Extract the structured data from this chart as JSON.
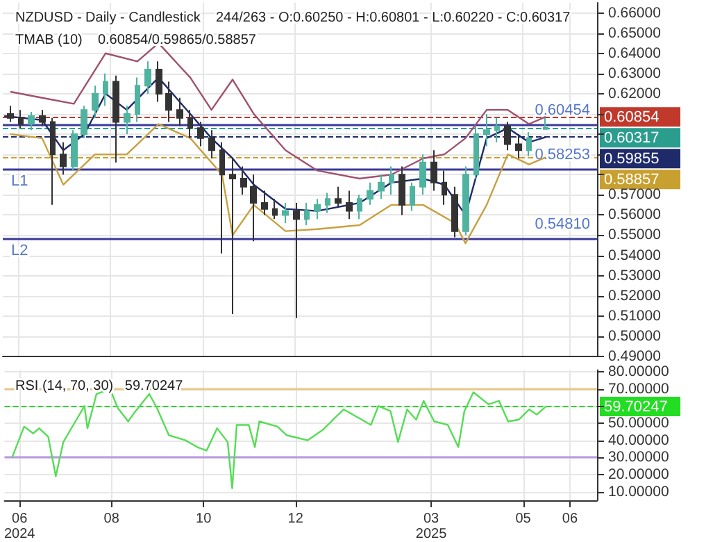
{
  "chart_data": [
    {
      "type": "candlestick",
      "title": "NZDUSD - Daily - Candlestick    244/263 - O:0.60250 - H:0.60801 - L:0.60220 - C:0.60317",
      "subtitle": "TMAB (10)    0.60854/0.59865/0.58857",
      "series": [
        {
          "colors": [
            "#333333",
            "#333333",
            "#4fb3a0",
            "#333333",
            "#333333",
            "#333333",
            "#4fb3a0",
            "#4fb3a0",
            "#4fb3a0",
            "#4fb3a0",
            "#333333",
            "#4fb3a0",
            "#4fb3a0",
            "#4fb3a0",
            "#333333",
            "#333333",
            "#333333",
            "#333333",
            "#333333",
            "#333333",
            "#333333",
            "#333333",
            "#333333",
            "#333333",
            "#333333",
            "#333333",
            "#4fb3a0",
            "#333333",
            "#4fb3a0",
            "#4fb3a0",
            "#4fb3a0",
            "#333333",
            "#333333",
            "#4fb3a0",
            "#4fb3a0",
            "#4fb3a0",
            "#4fb3a0",
            "#333333",
            "#4fb3a0",
            "#4fb3a0",
            "#333333",
            "#333333",
            "#333333",
            "#4fb3a0",
            "#4fb3a0",
            "#4fb3a0",
            "#4fb3a0",
            "#333333",
            "#333333",
            "#4fb3a0",
            "#4fb3a0"
          ],
          "x": [
            "2024-05-27",
            "2024-06-03",
            "2024-06-10",
            "2024-06-17",
            "2024-06-24",
            "2024-07-01",
            "2024-07-08",
            "2024-07-15",
            "2024-07-22",
            "2024-07-29",
            "2024-08-05",
            "2024-08-12",
            "2024-08-19",
            "2024-08-26",
            "2024-09-02",
            "2024-09-09",
            "2024-09-16",
            "2024-09-23",
            "2024-09-30",
            "2024-10-07",
            "2024-10-14",
            "2024-10-21",
            "2024-10-28",
            "2024-11-04",
            "2024-11-11",
            "2024-11-18",
            "2024-11-25",
            "2024-12-02",
            "2024-12-09",
            "2024-12-16",
            "2024-12-23",
            "2024-12-30",
            "2025-01-06",
            "2025-01-13",
            "2025-01-20",
            "2025-01-27",
            "2025-02-03",
            "2025-02-10",
            "2025-02-17",
            "2025-02-24",
            "2025-03-03",
            "2025-03-10",
            "2025-03-17",
            "2025-03-24",
            "2025-03-31",
            "2025-04-07",
            "2025-04-14",
            "2025-04-21",
            "2025-04-28",
            "2025-05-05",
            "2025-05-16"
          ],
          "ohlc": [
            [
              0.61,
              0.614,
              0.606,
              0.608
            ],
            [
              0.608,
              0.612,
              0.603,
              0.605
            ],
            [
              0.605,
              0.611,
              0.602,
              0.609
            ],
            [
              0.609,
              0.612,
              0.604,
              0.606
            ],
            [
              0.606,
              0.608,
              0.565,
              0.59
            ],
            [
              0.59,
              0.596,
              0.58,
              0.584
            ],
            [
              0.584,
              0.602,
              0.582,
              0.6
            ],
            [
              0.6,
              0.614,
              0.598,
              0.612
            ],
            [
              0.612,
              0.624,
              0.608,
              0.62
            ],
            [
              0.62,
              0.63,
              0.614,
              0.626
            ],
            [
              0.626,
              0.629,
              0.586,
              0.606
            ],
            [
              0.606,
              0.614,
              0.6,
              0.61
            ],
            [
              0.61,
              0.628,
              0.606,
              0.624
            ],
            [
              0.624,
              0.636,
              0.62,
              0.632
            ],
            [
              0.632,
              0.636,
              0.616,
              0.62
            ],
            [
              0.62,
              0.626,
              0.606,
              0.612
            ],
            [
              0.612,
              0.618,
              0.604,
              0.608
            ],
            [
              0.608,
              0.612,
              0.598,
              0.603
            ],
            [
              0.603,
              0.606,
              0.594,
              0.598
            ],
            [
              0.598,
              0.602,
              0.588,
              0.592
            ],
            [
              0.592,
              0.596,
              0.541,
              0.58
            ],
            [
              0.58,
              0.588,
              0.511,
              0.578
            ],
            [
              0.578,
              0.584,
              0.57,
              0.574
            ],
            [
              0.574,
              0.58,
              0.547,
              0.566
            ],
            [
              0.566,
              0.572,
              0.56,
              0.563
            ],
            [
              0.563,
              0.568,
              0.558,
              0.56
            ],
            [
              0.56,
              0.566,
              0.556,
              0.562
            ],
            [
              0.562,
              0.566,
              0.509,
              0.558
            ],
            [
              0.558,
              0.566,
              0.555,
              0.562
            ],
            [
              0.562,
              0.568,
              0.558,
              0.565
            ],
            [
              0.565,
              0.571,
              0.561,
              0.568
            ],
            [
              0.568,
              0.574,
              0.564,
              0.566
            ],
            [
              0.566,
              0.572,
              0.558,
              0.562
            ],
            [
              0.562,
              0.57,
              0.558,
              0.568
            ],
            [
              0.568,
              0.576,
              0.565,
              0.572
            ],
            [
              0.572,
              0.58,
              0.568,
              0.576
            ],
            [
              0.576,
              0.584,
              0.57,
              0.58
            ],
            [
              0.58,
              0.584,
              0.56,
              0.565
            ],
            [
              0.565,
              0.576,
              0.562,
              0.574
            ],
            [
              0.574,
              0.59,
              0.57,
              0.586
            ],
            [
              0.586,
              0.592,
              0.572,
              0.576
            ],
            [
              0.576,
              0.582,
              0.565,
              0.57
            ],
            [
              0.57,
              0.574,
              0.549,
              0.552
            ],
            [
              0.552,
              0.584,
              0.55,
              0.58
            ],
            [
              0.58,
              0.604,
              0.578,
              0.6
            ],
            [
              0.6,
              0.61,
              0.594,
              0.602
            ],
            [
              0.602,
              0.608,
              0.596,
              0.604
            ],
            [
              0.604,
              0.606,
              0.592,
              0.595
            ],
            [
              0.595,
              0.6,
              0.588,
              0.592
            ],
            [
              0.592,
              0.601,
              0.589,
              0.598
            ],
            [
              0.6025,
              0.60801,
              0.6022,
              0.60317
            ]
          ]
        },
        {
          "type": "line",
          "color": "#a0506e",
          "x": [
            "2024-05-27",
            "2024-06-17",
            "2024-07-08",
            "2024-07-29",
            "2024-08-19",
            "2024-09-02",
            "2024-09-23",
            "2024-10-07",
            "2024-10-21",
            "2024-11-04",
            "2024-11-25",
            "2024-12-16",
            "2025-01-13",
            "2025-02-03",
            "2025-02-24",
            "2025-03-10",
            "2025-03-24",
            "2025-04-07",
            "2025-04-21",
            "2025-05-05",
            "2025-05-16"
          ],
          "values": [
            0.621,
            0.618,
            0.615,
            0.64,
            0.636,
            0.645,
            0.628,
            0.612,
            0.627,
            0.61,
            0.592,
            0.582,
            0.578,
            0.58,
            0.588,
            0.59,
            0.598,
            0.612,
            0.612,
            0.605,
            0.60854
          ]
        },
        {
          "type": "line",
          "color": "#1f2a6b",
          "x": [
            "2024-05-23",
            "2024-06-17",
            "2024-07-01",
            "2024-07-15",
            "2024-07-29",
            "2024-08-12",
            "2024-09-02",
            "2024-09-23",
            "2024-10-07",
            "2024-10-21",
            "2024-11-04",
            "2024-11-25",
            "2024-12-16",
            "2025-01-13",
            "2025-02-03",
            "2025-02-24",
            "2025-03-10",
            "2025-03-24",
            "2025-04-07",
            "2025-04-21",
            "2025-05-05",
            "2025-05-16"
          ],
          "values": [
            0.609,
            0.607,
            0.592,
            0.6,
            0.62,
            0.612,
            0.628,
            0.61,
            0.598,
            0.588,
            0.575,
            0.563,
            0.562,
            0.566,
            0.576,
            0.578,
            0.575,
            0.56,
            0.598,
            0.603,
            0.596,
            0.59855
          ]
        },
        {
          "type": "line",
          "color": "#c8a040",
          "x": [
            "2024-05-27",
            "2024-06-17",
            "2024-07-01",
            "2024-07-22",
            "2024-08-12",
            "2024-09-02",
            "2024-09-23",
            "2024-10-14",
            "2024-10-21",
            "2024-11-04",
            "2024-11-25",
            "2024-12-16",
            "2025-01-13",
            "2025-02-03",
            "2025-02-24",
            "2025-03-17",
            "2025-03-24",
            "2025-04-07",
            "2025-04-21",
            "2025-05-05",
            "2025-05-16"
          ],
          "values": [
            0.6,
            0.598,
            0.575,
            0.59,
            0.59,
            0.605,
            0.598,
            0.58,
            0.55,
            0.565,
            0.552,
            0.553,
            0.555,
            0.565,
            0.565,
            0.556,
            0.546,
            0.565,
            0.59,
            0.585,
            0.58857
          ]
        }
      ],
      "xlim": [
        "2024-05-22",
        "2025-06-19"
      ],
      "xticks": [
        {
          "value": "2024-06-01",
          "label": null
        },
        {
          "value": "2024-08-01",
          "label": null
        },
        {
          "value": "2024-10-01",
          "label": null
        },
        {
          "value": "2024-12-01",
          "label": null
        },
        {
          "value": "2025-03-01",
          "label": null
        },
        {
          "value": "2025-05-01",
          "label": null
        },
        {
          "value": "2025-06-01",
          "label": null
        }
      ],
      "ylim": [
        0.49,
        0.665
      ],
      "yticks": [
        {
          "value": 0.49,
          "label": "0.49000"
        },
        {
          "value": 0.5,
          "label": "0.50000"
        },
        {
          "value": 0.51,
          "label": "0.51000"
        },
        {
          "value": 0.52,
          "label": "0.52000"
        },
        {
          "value": 0.53,
          "label": "0.53000"
        },
        {
          "value": 0.54,
          "label": "0.54000"
        },
        {
          "value": 0.55,
          "label": "0.55000"
        },
        {
          "value": 0.56,
          "label": "0.56000"
        },
        {
          "value": 0.57,
          "label": "0.57000"
        },
        {
          "value": 0.58,
          "label": null
        },
        {
          "value": 0.59,
          "label": null
        },
        {
          "value": 0.6,
          "label": null
        },
        {
          "value": 0.61,
          "label": null
        },
        {
          "value": 0.62,
          "label": "0.62000"
        },
        {
          "value": 0.63,
          "label": "0.63000"
        },
        {
          "value": 0.64,
          "label": "0.64000"
        },
        {
          "value": 0.65,
          "label": "0.65000"
        },
        {
          "value": 0.66,
          "label": "0.66000"
        }
      ],
      "ref_lines": [
        {
          "axis": "y",
          "value": 0.60454,
          "label": "0.60454",
          "color": "#3a3a9a",
          "line_style": "solid"
        },
        {
          "axis": "y",
          "value": 0.58253,
          "label": "0.58253",
          "color": "#3a3a9a",
          "line_style": "solid"
        },
        {
          "axis": "y",
          "value": 0.5481,
          "label": "0.54810",
          "color": "#3a3a9a",
          "line_style": "solid"
        },
        {
          "axis": "y",
          "value": 0.60854,
          "label": "0.60854",
          "color": "#c0392b",
          "line_style": "dashed"
        },
        {
          "axis": "y",
          "value": 0.60317,
          "label": "0.60317",
          "color": "#2a9d8f",
          "line_style": "dashed"
        },
        {
          "axis": "y",
          "value": 0.59855,
          "label": "0.59855",
          "color": "#1f2a6b",
          "line_style": "dashed"
        },
        {
          "axis": "y",
          "value": 0.58857,
          "label": "0.58857",
          "color": "#c8a030",
          "line_style": "dashed"
        }
      ],
      "annotations": [
        {
          "text": "L1",
          "y": 0.58253
        },
        {
          "text": "L2",
          "y": 0.5481
        }
      ],
      "grid": true,
      "tick_labels": "y",
      "marker": "none"
    },
    {
      "type": "line",
      "title": "RSI (14, 70, 30)   59.70247",
      "series": [
        {
          "color": "#55dd55",
          "x": [
            "2024-05-27",
            "2024-06-04",
            "2024-06-10",
            "2024-06-14",
            "2024-06-20",
            "2024-06-25",
            "2024-06-30",
            "2024-07-08",
            "2024-07-14",
            "2024-07-16",
            "2024-07-22",
            "2024-07-31",
            "2024-08-05",
            "2024-08-12",
            "2024-08-16",
            "2024-08-26",
            "2024-08-31",
            "2024-09-08",
            "2024-09-19",
            "2024-09-27",
            "2024-10-03",
            "2024-10-10",
            "2024-10-17",
            "2024-10-20",
            "2024-10-23",
            "2024-10-31",
            "2024-11-04",
            "2024-11-07",
            "2024-11-19",
            "2024-11-25",
            "2024-12-09",
            "2024-12-19",
            "2024-12-27",
            "2025-01-02",
            "2025-01-12",
            "2025-01-20",
            "2025-01-25",
            "2025-02-02",
            "2025-02-07",
            "2025-02-13",
            "2025-02-19",
            "2025-02-24",
            "2025-03-03",
            "2025-03-12",
            "2025-03-19",
            "2025-03-23",
            "2025-03-29",
            "2025-04-08",
            "2025-04-15",
            "2025-04-21",
            "2025-04-28",
            "2025-05-05",
            "2025-05-10",
            "2025-05-16"
          ],
          "values": [
            30,
            48,
            44,
            47,
            42,
            19,
            39,
            51,
            60,
            47,
            67,
            70,
            59,
            51,
            56,
            67,
            59,
            43,
            40,
            36,
            34,
            47,
            39,
            12,
            49,
            49,
            36,
            51,
            48,
            43,
            40,
            46,
            53,
            58,
            53,
            49,
            60,
            57,
            39,
            58,
            52,
            63,
            51,
            49,
            36,
            57,
            68,
            61,
            63,
            51,
            52,
            58,
            55,
            59.70247
          ]
        }
      ],
      "xlim": [
        "2024-05-22",
        "2025-06-19"
      ],
      "xticks": [
        {
          "value": "2024-06-01",
          "label": "06\n2024"
        },
        {
          "value": "2024-08-01",
          "label": "08"
        },
        {
          "value": "2024-10-01",
          "label": "10"
        },
        {
          "value": "2024-12-01",
          "label": "12"
        },
        {
          "value": "2025-03-01",
          "label": "03\n2025"
        },
        {
          "value": "2025-05-01",
          "label": "05"
        },
        {
          "value": "2025-06-01",
          "label": "06"
        }
      ],
      "ylim": [
        5,
        81
      ],
      "yticks": [
        {
          "value": 10,
          "label": "10.00000"
        },
        {
          "value": 20,
          "label": "20.00000"
        },
        {
          "value": 30,
          "label": "30.00000"
        },
        {
          "value": 40,
          "label": "40.00000"
        },
        {
          "value": 50,
          "label": "50.00000"
        },
        {
          "value": 60,
          "label": null
        },
        {
          "value": 70,
          "label": "70.00000"
        },
        {
          "value": 80,
          "label": "80.00000"
        }
      ],
      "ref_lines": [
        {
          "axis": "y",
          "value": 70,
          "label": null,
          "color": "#e8c888",
          "line_style": "solid"
        },
        {
          "axis": "y",
          "value": 30,
          "label": null,
          "color": "#b89ae0",
          "line_style": "solid"
        },
        {
          "axis": "y",
          "value": 59.70247,
          "label": "59.70247",
          "color": "#22dd22",
          "line_style": "dashed"
        }
      ],
      "grid": true,
      "marker": "none"
    }
  ]
}
